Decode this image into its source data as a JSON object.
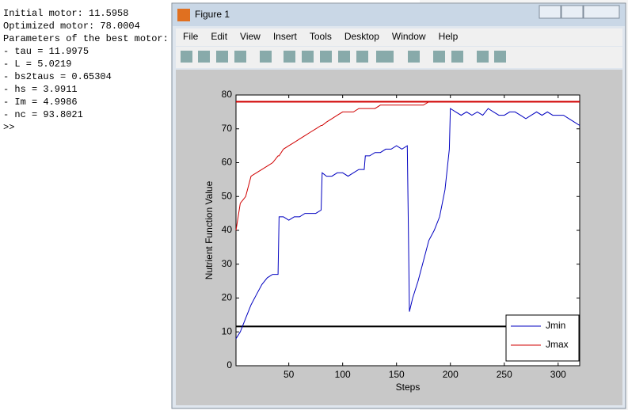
{
  "console": {
    "lines": [
      "Initial motor: 11.5958",
      "Optimized motor: 78.0004",
      "Parameters of the best motor:",
      "- tau = 11.9975",
      "- L = 5.0219",
      "- bs2taus = 0.65304",
      "- hs = 3.9911",
      "- Im = 4.9986",
      "- nc = 93.8021",
      ">>"
    ]
  },
  "window": {
    "title": "Figure 1",
    "menu": [
      "File",
      "Edit",
      "View",
      "Insert",
      "Tools",
      "Desktop",
      "Window",
      "Help"
    ]
  },
  "chart_data": {
    "type": "line",
    "xlabel": "Steps",
    "ylabel": "Nutrient Function Value",
    "x": [
      1,
      5,
      10,
      15,
      20,
      25,
      30,
      35,
      40,
      41,
      45,
      50,
      55,
      60,
      65,
      70,
      75,
      80,
      81,
      85,
      90,
      95,
      100,
      105,
      110,
      115,
      120,
      121,
      125,
      130,
      135,
      140,
      145,
      150,
      155,
      160,
      161,
      162,
      165,
      170,
      175,
      180,
      185,
      190,
      195,
      199,
      200,
      205,
      210,
      215,
      220,
      225,
      230,
      235,
      240,
      245,
      250,
      255,
      260,
      265,
      270,
      275,
      280,
      285,
      290,
      295,
      300,
      305,
      310,
      315,
      320
    ],
    "series": [
      {
        "name": "Jmin",
        "color": "#0000c0",
        "values": [
          8,
          10,
          14,
          18,
          21,
          24,
          26,
          27,
          27,
          44,
          44,
          43,
          44,
          44,
          45,
          45,
          45,
          46,
          57,
          56,
          56,
          57,
          57,
          56,
          57,
          58,
          58,
          62,
          62,
          63,
          63,
          64,
          64,
          65,
          64,
          65,
          40,
          16,
          20,
          25,
          31,
          37,
          40,
          44,
          52,
          64,
          76,
          75,
          74,
          75,
          74,
          75,
          74,
          76,
          75,
          74,
          74,
          75,
          75,
          74,
          73,
          74,
          75,
          74,
          75,
          74,
          74,
          74,
          73,
          72,
          71
        ]
      },
      {
        "name": "Jmax",
        "color": "#d00000",
        "values": [
          40,
          48,
          50,
          56,
          57,
          58,
          59,
          60,
          62,
          62,
          64,
          65,
          66,
          67,
          68,
          69,
          70,
          71,
          71,
          72,
          73,
          74,
          75,
          75,
          75,
          76,
          76,
          76,
          76,
          76,
          77,
          77,
          77,
          77,
          77,
          77,
          77,
          77,
          77,
          77,
          77,
          78,
          78,
          78,
          78,
          78,
          78,
          78,
          78,
          78,
          78,
          78,
          78,
          78,
          78,
          78,
          78,
          78,
          78,
          78,
          78,
          78,
          78,
          78,
          78,
          78,
          78,
          78,
          78,
          78,
          78
        ]
      }
    ],
    "hlines": [
      {
        "value": 11.5958,
        "color": "#000000"
      },
      {
        "value": 78.0004,
        "color": "#d00000"
      }
    ],
    "xlim": [
      1,
      320
    ],
    "xticks": [
      50,
      100,
      150,
      200,
      250,
      300
    ],
    "ylim": [
      0,
      80
    ],
    "yticks": [
      0,
      10,
      20,
      30,
      40,
      50,
      60,
      70,
      80
    ],
    "legend": "lower right"
  }
}
